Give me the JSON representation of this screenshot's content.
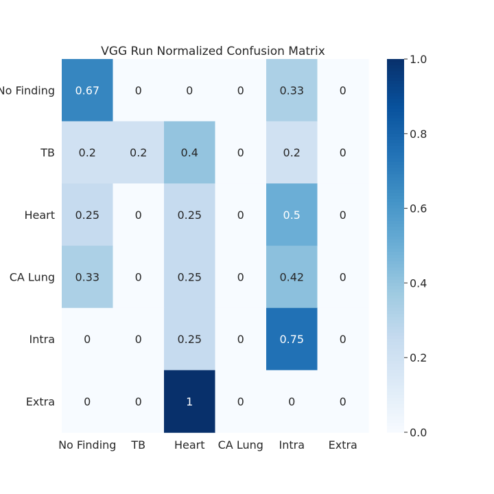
{
  "chart_data": {
    "type": "heatmap",
    "title": "VGG Run Normalized Confusion Matrix",
    "xlabel": "",
    "ylabel": "",
    "rows": [
      "No Finding",
      "TB",
      "Heart",
      "CA Lung",
      "Intra",
      "Extra"
    ],
    "cols": [
      "No Finding",
      "TB",
      "Heart",
      "CA Lung",
      "Intra",
      "Extra"
    ],
    "values": [
      [
        0.67,
        0,
        0,
        0,
        0.33,
        0
      ],
      [
        0.2,
        0.2,
        0.4,
        0,
        0.2,
        0
      ],
      [
        0.25,
        0,
        0.25,
        0,
        0.5,
        0
      ],
      [
        0.33,
        0,
        0.25,
        0,
        0.42,
        0
      ],
      [
        0,
        0,
        0.25,
        0,
        0.75,
        0
      ],
      [
        0,
        0,
        1,
        0,
        0,
        0
      ]
    ],
    "labels": [
      [
        "0.67",
        "0",
        "0",
        "0",
        "0.33",
        "0"
      ],
      [
        "0.2",
        "0.2",
        "0.4",
        "0",
        "0.2",
        "0"
      ],
      [
        "0.25",
        "0",
        "0.25",
        "0",
        "0.5",
        "0"
      ],
      [
        "0.33",
        "0",
        "0.25",
        "0",
        "0.42",
        "0"
      ],
      [
        "0",
        "0",
        "0.25",
        "0",
        "0.75",
        "0"
      ],
      [
        "0",
        "0",
        "1",
        "0",
        "0",
        "0"
      ]
    ],
    "colorscale": "Blues",
    "vmin": 0,
    "vmax": 1,
    "colorbar_ticks": [
      "0.0",
      "0.2",
      "0.4",
      "0.6",
      "0.8",
      "1.0"
    ],
    "grid": false
  }
}
